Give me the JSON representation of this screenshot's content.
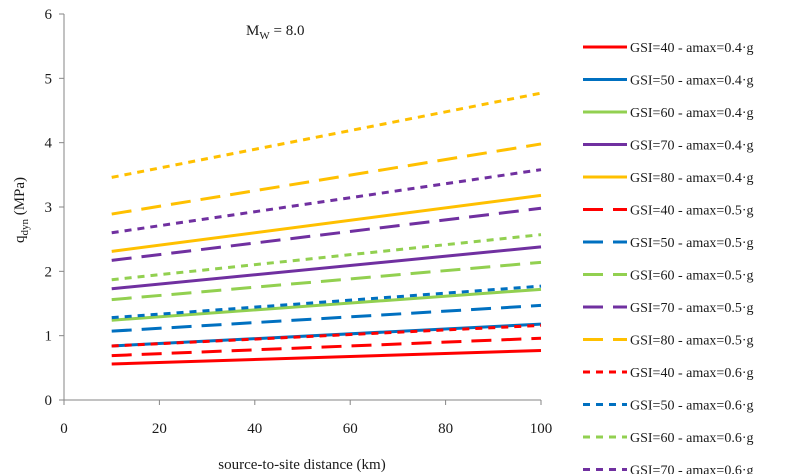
{
  "chart_data": {
    "type": "line",
    "annotation": {
      "main": "M",
      "sub": "W",
      "rest": " = 8.0"
    },
    "ylabel": {
      "main": "q",
      "sub": "dyn",
      "rest": " (MPa)"
    },
    "xlabel": "source-to-site distance (km)",
    "xlim": [
      0,
      100
    ],
    "ylim": [
      0,
      6
    ],
    "xticks": [
      "0",
      "20",
      "40",
      "60",
      "80",
      "100"
    ],
    "yticks": [
      "0",
      "1",
      "2",
      "3",
      "4",
      "5",
      "6"
    ],
    "grid": false,
    "legend_position": "right",
    "x": [
      10,
      100
    ],
    "series": [
      {
        "name": "GSI=40 - amax=0.4·g",
        "color": "#ff0000",
        "dash": "solid",
        "values": [
          0.56,
          0.77
        ]
      },
      {
        "name": "GSI=50 - amax=0.4·g",
        "color": "#0070c0",
        "dash": "solid",
        "values": [
          0.84,
          1.18
        ]
      },
      {
        "name": "GSI=60 - amax=0.4·g",
        "color": "#92d050",
        "dash": "solid",
        "values": [
          1.24,
          1.72
        ]
      },
      {
        "name": "GSI=70 - amax=0.4·g",
        "color": "#7030a0",
        "dash": "solid",
        "values": [
          1.73,
          2.38
        ]
      },
      {
        "name": "GSI=80 - amax=0.4·g",
        "color": "#ffc000",
        "dash": "solid",
        "values": [
          2.31,
          3.18
        ]
      },
      {
        "name": "GSI=40 - amax=0.5·g",
        "color": "#ff0000",
        "dash": "long",
        "values": [
          0.69,
          0.96
        ]
      },
      {
        "name": "GSI=50 - amax=0.5·g",
        "color": "#0070c0",
        "dash": "long",
        "values": [
          1.07,
          1.47
        ]
      },
      {
        "name": "GSI=60 - amax=0.5·g",
        "color": "#92d050",
        "dash": "long",
        "values": [
          1.56,
          2.14
        ]
      },
      {
        "name": "GSI=70 - amax=0.5·g",
        "color": "#7030a0",
        "dash": "long",
        "values": [
          2.17,
          2.98
        ]
      },
      {
        "name": "GSI=80 - amax=0.5·g",
        "color": "#ffc000",
        "dash": "long",
        "values": [
          2.89,
          3.98
        ]
      },
      {
        "name": "GSI=40 - amax=0.6·g",
        "color": "#ff0000",
        "dash": "short",
        "values": [
          0.84,
          1.16
        ]
      },
      {
        "name": "GSI=50 - amax=0.6·g",
        "color": "#0070c0",
        "dash": "short",
        "values": [
          1.28,
          1.77
        ]
      },
      {
        "name": "GSI=60 - amax=0.6·g",
        "color": "#92d050",
        "dash": "short",
        "values": [
          1.87,
          2.57
        ]
      },
      {
        "name": "GSI=70 - amax=0.6·g",
        "color": "#7030a0",
        "dash": "short",
        "values": [
          2.6,
          3.58
        ]
      },
      {
        "name": "",
        "color": "#ffc000",
        "dash": "short",
        "values": [
          3.46,
          4.77
        ]
      }
    ]
  }
}
